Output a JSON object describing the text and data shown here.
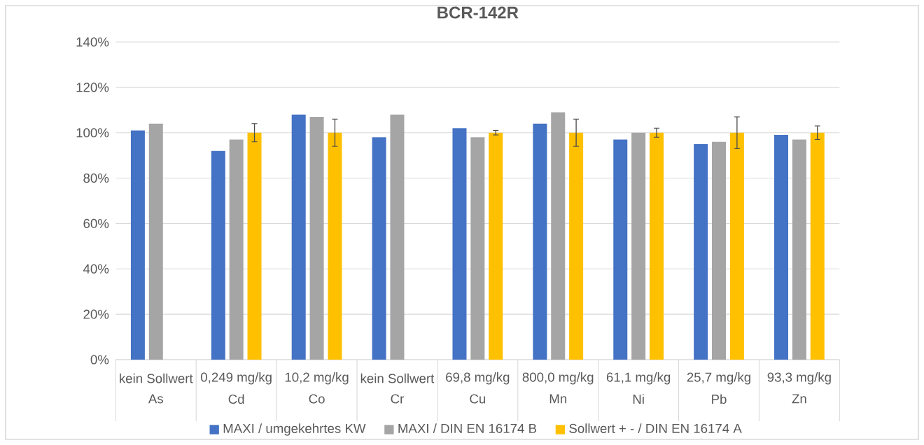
{
  "chart_data": {
    "type": "bar",
    "title": "BCR-142R",
    "categories": [
      "As",
      "Cd",
      "Co",
      "Cr",
      "Cu",
      "Mn",
      "Ni",
      "Pb",
      "Zn"
    ],
    "series": [
      {
        "name": "MAXI / umgekehrtes KW",
        "color": "#4472c4",
        "values": [
          101,
          92,
          108,
          98,
          102,
          104,
          97,
          95,
          99
        ]
      },
      {
        "name": "MAXI / DIN EN 16174 B",
        "color": "#a5a5a5",
        "values": [
          104,
          97,
          107,
          108,
          98,
          109,
          100,
          96,
          97
        ]
      },
      {
        "name": "Sollwert + - / DIN EN 16174 A",
        "color": "#ffc000",
        "values": [
          null,
          100,
          100,
          null,
          100,
          100,
          100,
          100,
          100
        ],
        "errors": [
          null,
          4,
          6,
          null,
          1,
          6,
          2,
          7,
          3
        ]
      }
    ],
    "annotations": [
      "kein Sollwert",
      "0,249 mg/kg",
      "10,2 mg/kg",
      "kein Sollwert",
      "69,8 mg/kg",
      "800,0 mg/kg",
      "61,1 mg/kg",
      "25,7 mg/kg",
      "93,3 mg/kg"
    ],
    "ylim": [
      0,
      140
    ],
    "yticks": [
      {
        "value": 0,
        "label": "0%"
      },
      {
        "value": 20,
        "label": "20%"
      },
      {
        "value": 40,
        "label": "40%"
      },
      {
        "value": 60,
        "label": "60%"
      },
      {
        "value": 80,
        "label": "80%"
      },
      {
        "value": 100,
        "label": "100%"
      },
      {
        "value": 120,
        "label": "120%"
      },
      {
        "value": 140,
        "label": "140%"
      }
    ],
    "grid": "y",
    "legend": "bottom"
  }
}
